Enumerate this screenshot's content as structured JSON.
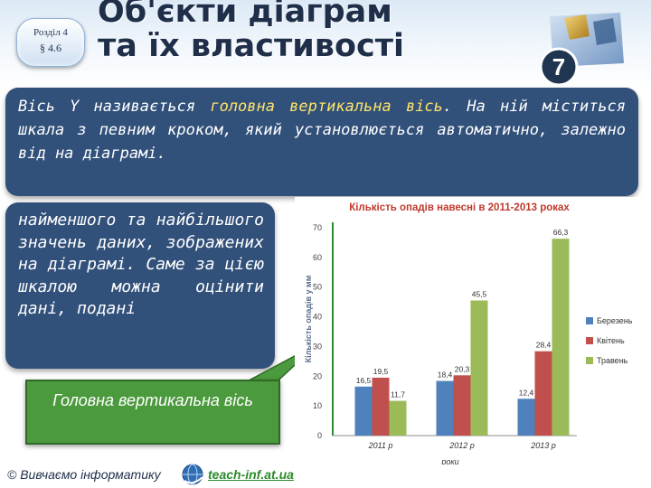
{
  "header": {
    "section_line1": "Розділ 4",
    "section_line2": "§ 4.6",
    "title_line1": "Об'єкти діаграм",
    "title_line2": "та їх властивості",
    "grade": "7"
  },
  "intro": {
    "text_before": "Вісь Y називається ",
    "highlight": "головна вертикальна вісь",
    "text_after": ". На ній міститься шкала з певним кроком, який установлюється автоматично, залежно від на діаграмі."
  },
  "side_text": "найменшого та найбільшого значень даних, зображених на діаграмі. Саме за цією шкалою можна оцінити дані, подані",
  "callout": {
    "label": "Головна вертикальна вісь"
  },
  "footer": {
    "copyright": "© Вивчаємо інформатику",
    "site": "teach-inf.at.ua"
  },
  "colors": {
    "panel": "#31507a",
    "highlight": "#ffe36a",
    "callout": "#4c9a3e",
    "berezen": "#4f81bd",
    "kviten": "#c0504d",
    "traven": "#9bbb59"
  },
  "chart_data": {
    "type": "bar",
    "title": "Кількість опадів навесні в 2011-2013 роках",
    "xlabel": "роки",
    "ylabel": "Кількість опадів у мм",
    "ylim": [
      0,
      70
    ],
    "yticks": [
      0,
      10,
      20,
      30,
      40,
      50,
      60,
      70
    ],
    "categories": [
      "2011 р",
      "2012 р",
      "2013 р"
    ],
    "series": [
      {
        "name": "Березень",
        "color": "#4f81bd",
        "values": [
          16.5,
          18.4,
          12.4
        ]
      },
      {
        "name": "Квітень",
        "color": "#c0504d",
        "values": [
          19.5,
          20.3,
          28.4
        ]
      },
      {
        "name": "Травень",
        "color": "#9bbb59",
        "values": [
          11.7,
          45.5,
          66.3
        ]
      }
    ],
    "value_labels": [
      [
        "16,5",
        "18,4",
        "12,4"
      ],
      [
        "19,5",
        "20,3",
        "28,4"
      ],
      [
        "11,7",
        "45,5",
        "66,3"
      ]
    ],
    "legend_position": "right",
    "grid": false
  }
}
